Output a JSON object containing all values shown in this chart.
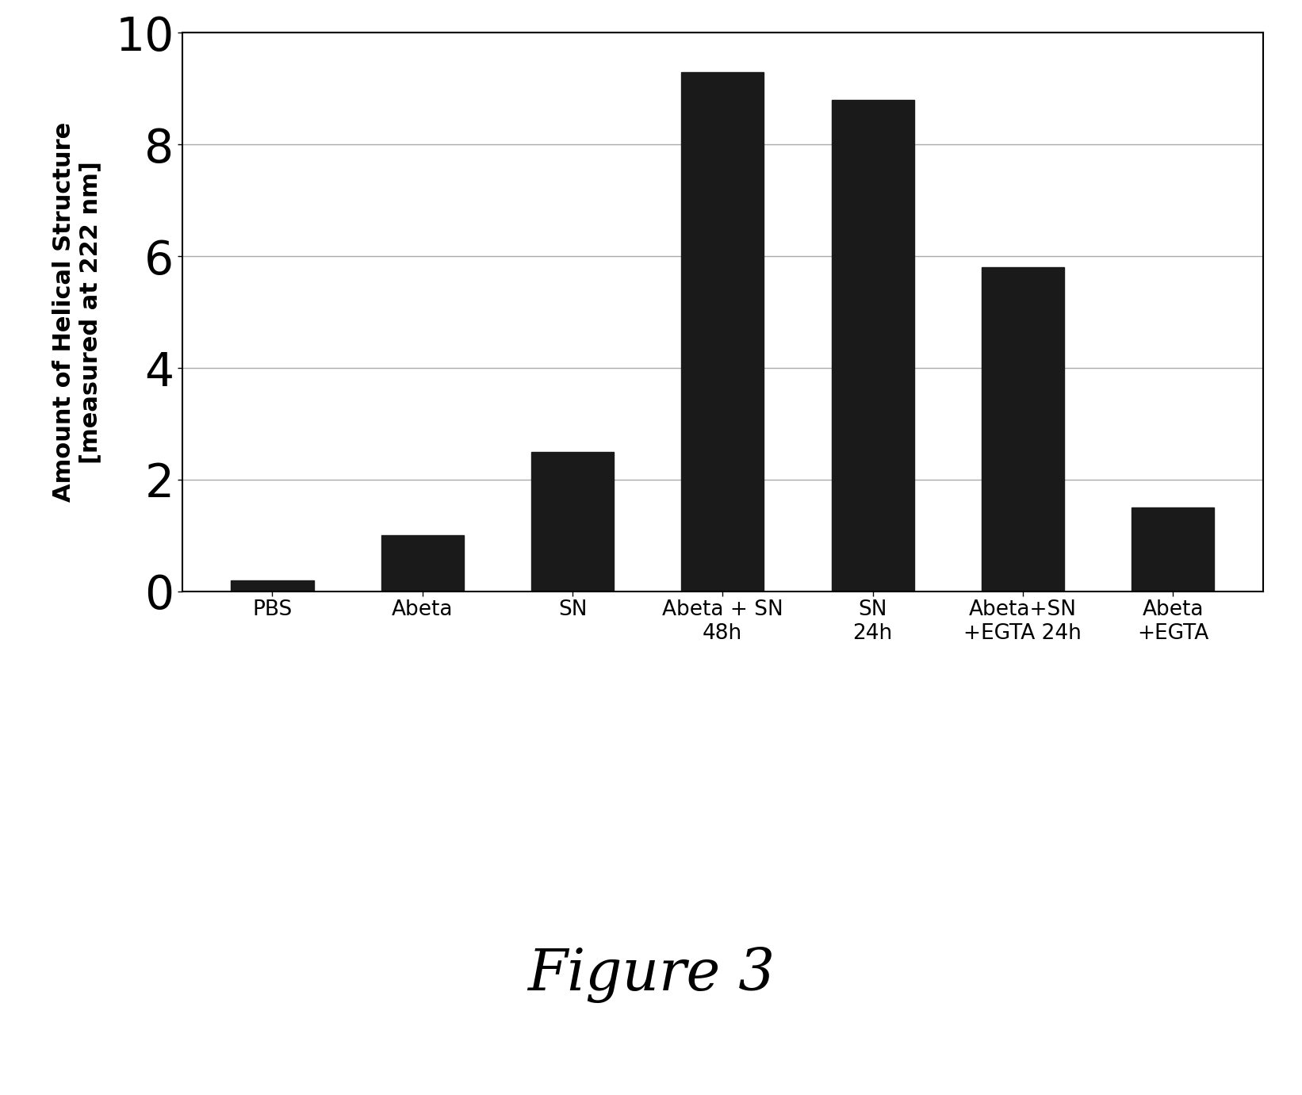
{
  "categories": [
    "PBS",
    "Abeta",
    "SN",
    "Abeta + SN\n48h",
    "SN\n24h",
    "Abeta+SN\n+EGTA 24h",
    "Abeta\n+EGTA"
  ],
  "values": [
    0.2,
    1.0,
    2.5,
    9.3,
    8.8,
    5.8,
    1.5
  ],
  "bar_color": "#1a1a1a",
  "ylabel_line1": "Amount of Helical Structure",
  "ylabel_line2": "[measured at 222 nm]",
  "ylim": [
    0,
    10
  ],
  "yticks": [
    0,
    2,
    4,
    6,
    8,
    10
  ],
  "figure_caption": "Figure 3",
  "background_color": "#ffffff",
  "bar_width": 0.55,
  "ylabel_fontsize": 22,
  "ytick_fontsize": 42,
  "xtick_fontsize": 19,
  "caption_fontsize": 52,
  "grid_color": "#aaaaaa",
  "spine_color": "#000000"
}
